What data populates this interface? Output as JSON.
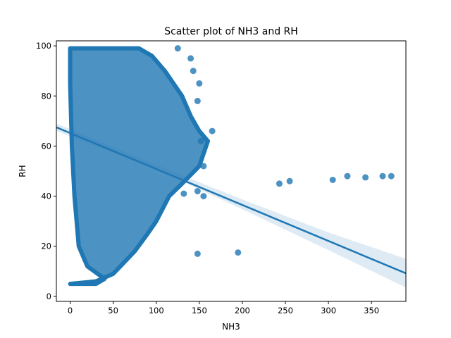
{
  "chart_data": {
    "type": "scatter",
    "title": "Scatter plot of NH3 and RH",
    "xlabel": "NH3",
    "ylabel": "RH",
    "xlim": [
      -16,
      390
    ],
    "ylim": [
      -2,
      102
    ],
    "x_ticks": [
      0,
      50,
      100,
      150,
      200,
      250,
      300,
      350
    ],
    "y_ticks": [
      0,
      20,
      40,
      60,
      80,
      100
    ],
    "grid": false,
    "point_color": "#1f77b4",
    "point_opacity": 0.8,
    "dense_cloud": {
      "description_note": "thousands of overlapping points forming a dense band",
      "upper_envelope": [
        [
          0,
          99
        ],
        [
          40,
          99
        ],
        [
          80,
          99
        ],
        [
          95,
          96
        ],
        [
          110,
          90
        ],
        [
          130,
          80
        ],
        [
          140,
          72
        ],
        [
          150,
          66
        ],
        [
          160,
          62
        ],
        [
          150,
          52
        ],
        [
          130,
          45
        ],
        [
          115,
          40
        ],
        [
          100,
          30
        ],
        [
          90,
          25
        ],
        [
          75,
          18
        ],
        [
          50,
          9
        ],
        [
          30,
          6
        ]
      ],
      "lower_envelope": [
        [
          0,
          5
        ],
        [
          30,
          5
        ],
        [
          40,
          7
        ],
        [
          20,
          12
        ],
        [
          10,
          20
        ],
        [
          5,
          40
        ],
        [
          2,
          60
        ],
        [
          0,
          85
        ],
        [
          0,
          99
        ]
      ]
    },
    "outlier_points": [
      {
        "x": 148,
        "y": 17
      },
      {
        "x": 195,
        "y": 17.5
      },
      {
        "x": 243,
        "y": 45
      },
      {
        "x": 255,
        "y": 46
      },
      {
        "x": 305,
        "y": 46.5
      },
      {
        "x": 322,
        "y": 48
      },
      {
        "x": 343,
        "y": 47.5
      },
      {
        "x": 363,
        "y": 48
      },
      {
        "x": 373,
        "y": 48
      },
      {
        "x": 140,
        "y": 95
      },
      {
        "x": 143,
        "y": 90
      },
      {
        "x": 150,
        "y": 85
      },
      {
        "x": 148,
        "y": 78
      },
      {
        "x": 165,
        "y": 66
      },
      {
        "x": 152,
        "y": 62
      },
      {
        "x": 155,
        "y": 52
      },
      {
        "x": 148,
        "y": 42
      },
      {
        "x": 155,
        "y": 40
      },
      {
        "x": 132,
        "y": 41
      },
      {
        "x": 125,
        "y": 99
      }
    ],
    "regression": {
      "line": [
        [
          -16,
          67.5
        ],
        [
          390,
          9.2
        ]
      ],
      "ci_upper": [
        [
          -16,
          69
        ],
        [
          100,
          52.5
        ],
        [
          200,
          38.7
        ],
        [
          300,
          25.5
        ],
        [
          390,
          15
        ]
      ],
      "ci_lower": [
        [
          -16,
          66
        ],
        [
          100,
          50.7
        ],
        [
          200,
          34.8
        ],
        [
          300,
          18.5
        ],
        [
          390,
          3.5
        ]
      ],
      "line_color": "#1f77b4",
      "ci_color": "#1f77b4",
      "ci_opacity": 0.15
    }
  }
}
